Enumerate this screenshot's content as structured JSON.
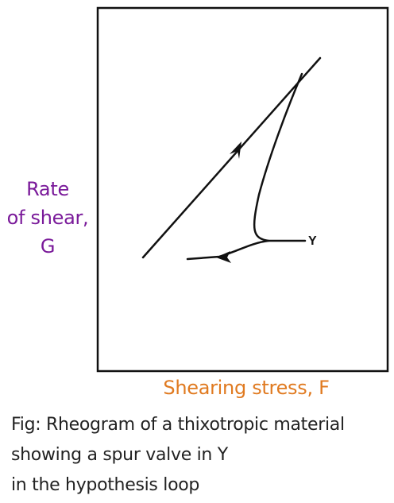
{
  "y_axis_label": {
    "lines": [
      "Rate",
      "of shear,",
      "G"
    ],
    "color": "#7a1a9a"
  },
  "x_axis_label": {
    "text": "Shearing stress, F",
    "color": "#e07a20"
  },
  "point_label": "Y",
  "caption": {
    "lines": [
      "Fig: Rheogram of a thixotropic material",
      "showing a spur valve in Y",
      "in the hypothesis loop"
    ]
  },
  "colors": {
    "line": "#111111",
    "frame": "#111111"
  }
}
